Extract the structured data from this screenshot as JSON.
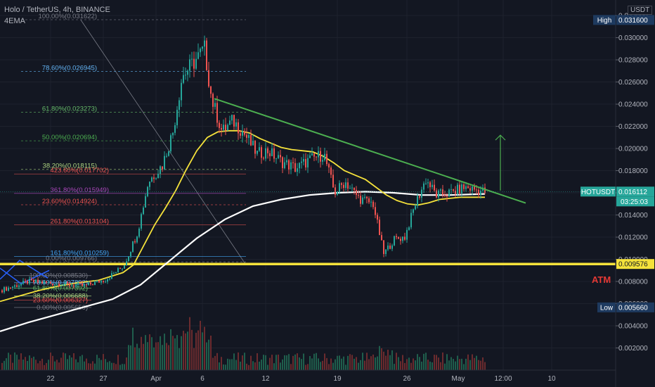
{
  "header": {
    "title": "Holo / TetherUS, 4h, BINANCE",
    "indicator": "4EMA",
    "currency": "USDT"
  },
  "annotation_text": "ATM",
  "chart_data": {
    "type": "candlestick",
    "x_tick_labels": [
      "22",
      "27",
      "Apr",
      "6",
      "12",
      "19",
      "26",
      "May",
      "12:00",
      "10"
    ],
    "y_ticks": [
      0.002,
      0.004,
      0.006,
      0.008,
      0.01,
      0.012,
      0.014,
      0.016,
      0.018,
      0.02,
      0.022,
      0.024,
      0.026,
      0.028,
      0.03,
      0.032
    ],
    "y_tick_labels": [
      "0.002000",
      "0.004000",
      "0.006000",
      "0.008000",
      "0.010000",
      "0.012000",
      "0.014000",
      "0.016000",
      "0.018000",
      "0.020000",
      "0.022000",
      "0.024000",
      "0.026000",
      "0.028000",
      "0.030000",
      "0.032000"
    ],
    "ylim": [
      0.0,
      0.0334
    ],
    "price_markers": [
      {
        "label": "High",
        "value": 0.0316,
        "text": "0.031600",
        "color": "#1e3a5f"
      },
      {
        "label": "HOTUSDT",
        "value": 0.016112,
        "text": "0.016112",
        "extra": "03:25:03",
        "color": "#26a69a"
      },
      {
        "label": "",
        "value": 0.009576,
        "text": "0.009576",
        "color": "#f5e23b"
      },
      {
        "label": "Low",
        "value": 0.00566,
        "text": "0.005660",
        "color": "#1e3a5f"
      }
    ],
    "fib_upper": [
      {
        "label": "100.00%(0.031622)",
        "value": 0.031622,
        "color": "#787b86"
      },
      {
        "label": "78.60%(0.026945)",
        "value": 0.026945,
        "color": "#64b5f6"
      },
      {
        "label": "61.80%(0.023273)",
        "value": 0.023273,
        "color": "#66bb6a"
      },
      {
        "label": "50.00%(0.020694)",
        "value": 0.020694,
        "color": "#4caf50"
      },
      {
        "label": "38.20%(0.018115)",
        "value": 0.018115,
        "color": "#aed581"
      },
      {
        "label": "23.60%(0.014924)",
        "value": 0.014924,
        "color": "#ef5350"
      },
      {
        "label": "0.00%(0.009766)",
        "value": 0.009766,
        "color": "#787b86"
      }
    ],
    "fib_ext": [
      {
        "label": "423.60%(0.017702)",
        "value": 0.017702,
        "color": "#ef5350"
      },
      {
        "label": "361.80%(0.015949)",
        "value": 0.015949,
        "color": "#ab47bc"
      },
      {
        "label": "261.80%(0.013104)",
        "value": 0.013104,
        "color": "#ef5350"
      },
      {
        "label": "161.80%(0.010259)",
        "value": 0.010259,
        "color": "#42a5f5"
      }
    ],
    "fib_lower": [
      {
        "label": "100.00%(0.008530)",
        "value": 0.00853,
        "color": "#787b86"
      },
      {
        "label": "78.60%(0.007892)",
        "value": 0.007892,
        "color": "#64b5f6"
      },
      {
        "label": "61.80%(0.007392)",
        "value": 0.007392,
        "color": "#66bb6a"
      },
      {
        "label": "38.20%(0.006688)",
        "value": 0.006688,
        "color": "#aed581"
      },
      {
        "label": "23.60%(0.006327)",
        "value": 0.006327,
        "color": "#ef5350"
      },
      {
        "label": "0.00%(0.005656)",
        "value": 0.005656,
        "color": "#787b86"
      }
    ],
    "ema_short": [
      [
        0,
        0.0062
      ],
      [
        28,
        0.0067
      ],
      [
        56,
        0.0072
      ],
      [
        84,
        0.0076
      ],
      [
        112,
        0.0079
      ],
      [
        140,
        0.0081
      ],
      [
        160,
        0.0085
      ],
      [
        175,
        0.0088
      ],
      [
        190,
        0.0095
      ],
      [
        205,
        0.0113
      ],
      [
        220,
        0.0131
      ],
      [
        235,
        0.0146
      ],
      [
        250,
        0.0162
      ],
      [
        265,
        0.0181
      ],
      [
        280,
        0.0198
      ],
      [
        295,
        0.021
      ],
      [
        310,
        0.0215
      ],
      [
        325,
        0.0216
      ],
      [
        340,
        0.0216
      ],
      [
        355,
        0.0214
      ],
      [
        370,
        0.0209
      ],
      [
        385,
        0.0205
      ],
      [
        400,
        0.0201
      ],
      [
        415,
        0.0199
      ],
      [
        430,
        0.0198
      ],
      [
        445,
        0.0197
      ],
      [
        460,
        0.0193
      ],
      [
        475,
        0.0187
      ],
      [
        490,
        0.018
      ],
      [
        505,
        0.0176
      ],
      [
        520,
        0.0172
      ],
      [
        535,
        0.0165
      ],
      [
        550,
        0.0158
      ],
      [
        565,
        0.0153
      ],
      [
        580,
        0.015
      ],
      [
        595,
        0.0149
      ],
      [
        610,
        0.0151
      ],
      [
        625,
        0.0154
      ],
      [
        640,
        0.0155
      ],
      [
        655,
        0.0156
      ],
      [
        670,
        0.0156
      ],
      [
        690,
        0.0156
      ]
    ],
    "ema_long": [
      [
        0,
        0.0035
      ],
      [
        40,
        0.0043
      ],
      [
        80,
        0.005
      ],
      [
        120,
        0.0057
      ],
      [
        160,
        0.0064
      ],
      [
        200,
        0.0077
      ],
      [
        240,
        0.0098
      ],
      [
        280,
        0.0119
      ],
      [
        320,
        0.0136
      ],
      [
        360,
        0.0148
      ],
      [
        400,
        0.0154
      ],
      [
        440,
        0.0158
      ],
      [
        480,
        0.016
      ],
      [
        520,
        0.0161
      ],
      [
        560,
        0.016
      ],
      [
        600,
        0.0158
      ],
      [
        640,
        0.0158
      ],
      [
        690,
        0.0159
      ]
    ],
    "trendline": [
      [
        305,
        0.0245
      ],
      [
        748,
        0.01508
      ]
    ],
    "support_line": 0.009576,
    "target_arrow": {
      "x": 712,
      "from": 0.0162,
      "to": 0.0212
    },
    "volume_max": 0.25
  }
}
